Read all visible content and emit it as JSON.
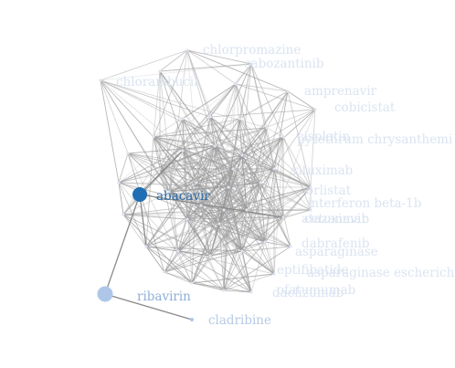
{
  "graph": {
    "nodes": [
      {
        "id": "chlorpromazine",
        "label": "chlorpromazine"
      },
      {
        "id": "cabozantinib",
        "label": "cabozantinib"
      },
      {
        "id": "chlorambucil",
        "label": "chlorambucil"
      },
      {
        "id": "amprenavir",
        "label": "amprenavir"
      },
      {
        "id": "cobicistat",
        "label": "cobicistat"
      },
      {
        "id": "pyrethrum",
        "label": "pyrethrum chrysanthemi"
      },
      {
        "id": "cisplatin",
        "label": "cisplatin"
      },
      {
        "id": "rituximab",
        "label": "rituximab"
      },
      {
        "id": "orlistat",
        "label": "orlistat"
      },
      {
        "id": "interferon",
        "label": "interferon beta-1b"
      },
      {
        "id": "atazanavir",
        "label": "atazanavir"
      },
      {
        "id": "cetuximab",
        "label": "cetuximab"
      },
      {
        "id": "dabrafenib",
        "label": "dabrafenib"
      },
      {
        "id": "asparaginase",
        "label": "asparaginase"
      },
      {
        "id": "asparaginase-e",
        "label": "asparaginase escherichia"
      },
      {
        "id": "eptifibatide",
        "label": "eptifibatide"
      },
      {
        "id": "daclizumab",
        "label": "daclizumab"
      },
      {
        "id": "ofatumumab",
        "label": "ofatumumab"
      },
      {
        "id": "abacavir",
        "label": "abacavir"
      },
      {
        "id": "ribavirin",
        "label": "ribavirin"
      },
      {
        "id": "cladribine",
        "label": "cladribine"
      }
    ],
    "highlighted": "abacavir",
    "colors": {
      "active_node": "#1f6eb3",
      "neighbor_node": "#aec7e8",
      "faded_label": "#dbe4f1",
      "edge": "#9a9a9a"
    }
  }
}
